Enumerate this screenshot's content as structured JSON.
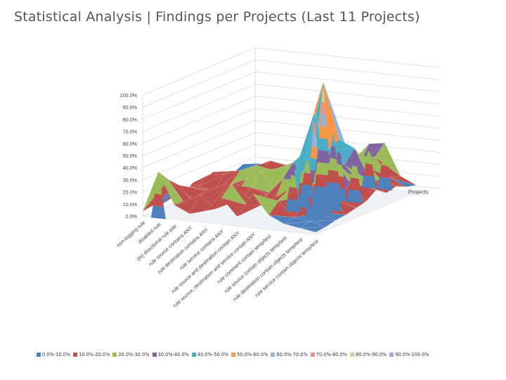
{
  "page": {
    "title": "Statistical Analysis | Findings per Projects (Last 11 Projects)"
  },
  "chart_data": {
    "type": "surface",
    "title": "",
    "xlabel": "",
    "ylabel": "",
    "zlabel": "Projects",
    "ylim": [
      0,
      100
    ],
    "y_tick_labels": [
      "0.0%",
      "10.0%",
      "20.0%",
      "30.0%",
      "40.0%",
      "50.0%",
      "60.0%",
      "70.0%",
      "80.0%",
      "90.0%",
      "100.0%"
    ],
    "categories": [
      "non-logging rule",
      "disabled rule",
      "bi-directional rule pair",
      "rule source contains ANY",
      "rule destination contains ANY",
      "rule service contains ANY",
      "rule source and destination contain ANY",
      "rule source, destination and service contain ANY",
      "rule comment contain temp/test",
      "rule source contain objects temp/test",
      "rule destination contain objects temp/test",
      "rule service contain objects temp/test"
    ],
    "category_labels_display": [
      "non-logging rule",
      "disabled rule",
      "(bi) directional rule pair",
      "rule source contains ANY",
      "rule destination contains ANY",
      "rule service contains ANY",
      "rule source and destination contain ANY",
      "rule source, destination and service contain ANY",
      "rule comment contain temp/test",
      "rule source contain objects temp/test",
      "rule destination contain objects temp/test",
      "rule service contain objects temp/test"
    ],
    "series_count": 11,
    "values": [
      [
        4,
        38,
        12,
        6,
        10,
        22,
        8,
        28,
        12,
        6,
        4,
        2
      ],
      [
        5,
        28,
        10,
        18,
        8,
        30,
        14,
        16,
        20,
        8,
        6,
        3
      ],
      [
        3,
        20,
        8,
        12,
        25,
        14,
        10,
        12,
        26,
        22,
        10,
        5
      ],
      [
        6,
        15,
        14,
        8,
        12,
        20,
        16,
        30,
        18,
        88,
        18,
        6
      ],
      [
        4,
        12,
        10,
        16,
        22,
        30,
        12,
        40,
        26,
        55,
        14,
        8
      ],
      [
        10,
        18,
        20,
        24,
        30,
        26,
        32,
        36,
        58,
        40,
        24,
        10
      ],
      [
        8,
        10,
        14,
        18,
        16,
        22,
        28,
        24,
        46,
        34,
        20,
        16
      ],
      [
        12,
        14,
        16,
        14,
        20,
        18,
        36,
        96,
        50,
        44,
        18,
        10
      ],
      [
        6,
        8,
        10,
        22,
        18,
        26,
        28,
        52,
        34,
        26,
        16,
        12
      ],
      [
        4,
        6,
        12,
        10,
        14,
        18,
        20,
        16,
        22,
        30,
        14,
        8
      ],
      [
        8,
        10,
        6,
        12,
        10,
        14,
        16,
        12,
        36,
        38,
        12,
        6
      ]
    ],
    "bands": [
      {
        "label": "0.0%-10.0%",
        "color": "#4F81BD"
      },
      {
        "label": "10.0%-20.0%",
        "color": "#C0504D"
      },
      {
        "label": "20.0%-30.0%",
        "color": "#9BBB59"
      },
      {
        "label": "30.0%-40.0%",
        "color": "#8064A2"
      },
      {
        "label": "40.0%-50.0%",
        "color": "#4BACC6"
      },
      {
        "label": "50.0%-60.0%",
        "color": "#F79646"
      },
      {
        "label": "60.0%-70.0%",
        "color": "#95B3D7"
      },
      {
        "label": "70.0%-80.0%",
        "color": "#D99694"
      },
      {
        "label": "80.0%-90.0%",
        "color": "#C3D69B"
      },
      {
        "label": "90.0%-100.0%",
        "color": "#B2A2C7"
      }
    ],
    "legend_position": "bottom",
    "grid": true
  }
}
